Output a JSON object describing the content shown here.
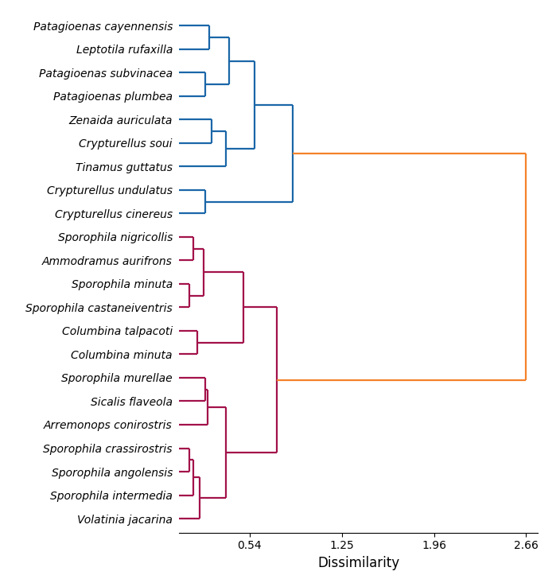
{
  "chart_data": {
    "type": "dendrogram",
    "xlabel": "Dissimilarity",
    "xlim": [
      0,
      2.75
    ],
    "xticks": [
      0.54,
      1.25,
      1.96,
      2.66
    ],
    "tree": {
      "height": 2.66,
      "color": "#f5822a",
      "children": [
        {
          "height": 0.87,
          "color": "#1a66a8",
          "children": [
            {
              "height": 0.58,
              "color": "#1a66a8",
              "children": [
                {
                  "height": 0.38,
                  "color": "#1a66a8",
                  "children": [
                    {
                      "height": 0.23,
                      "color": "#1a66a8",
                      "children": [
                        "Patagioenas cayennensis",
                        "Leptotila rufaxilla"
                      ]
                    },
                    {
                      "height": 0.2,
                      "color": "#1a66a8",
                      "children": [
                        "Patagioenas subvinacea",
                        "Patagioenas plumbea"
                      ]
                    }
                  ]
                },
                {
                  "height": 0.36,
                  "color": "#1a66a8",
                  "children": [
                    {
                      "height": 0.25,
                      "color": "#1a66a8",
                      "children": [
                        "Zenaida auriculata",
                        "Crypturellus soui"
                      ]
                    },
                    "Tinamus guttatus"
                  ]
                }
              ]
            },
            {
              "height": 0.2,
              "color": "#1a66a8",
              "children": [
                "Crypturellus undulatus",
                "Crypturellus cinereus"
              ]
            }
          ]
        },
        {
          "height": 0.75,
          "color": "#a3124a",
          "children": [
            {
              "height": 0.49,
              "color": "#a3124a",
              "children": [
                {
                  "height": 0.19,
                  "color": "#a3124a",
                  "children": [
                    {
                      "height": 0.11,
                      "color": "#a3124a",
                      "children": [
                        "Sporophila nigricollis",
                        "Ammodramus aurifrons"
                      ]
                    },
                    {
                      "height": 0.075,
                      "color": "#a3124a",
                      "children": [
                        "Sporophila minuta",
                        "Sporophila castaneiventris"
                      ]
                    }
                  ]
                },
                {
                  "height": 0.14,
                  "color": "#a3124a",
                  "children": [
                    "Columbina talpacoti",
                    "Columbina minuta"
                  ]
                }
              ]
            },
            {
              "height": 0.36,
              "color": "#a3124a",
              "children": [
                {
                  "height": 0.22,
                  "color": "#a3124a",
                  "children": [
                    {
                      "height": 0.2,
                      "color": "#a3124a",
                      "children": [
                        "Sporophila murellae",
                        "Sicalis flaveola"
                      ]
                    },
                    "Arremonops conirostris"
                  ]
                },
                {
                  "height": 0.16,
                  "color": "#a3124a",
                  "children": [
                    {
                      "height": 0.11,
                      "color": "#a3124a",
                      "children": [
                        {
                          "height": 0.075,
                          "color": "#a3124a",
                          "children": [
                            "Sporophila crassirostris",
                            "Sporophila angolensis"
                          ]
                        },
                        "Sporophila intermedia"
                      ]
                    },
                    "Volatinia jacarina"
                  ]
                }
              ]
            }
          ]
        }
      ]
    }
  }
}
